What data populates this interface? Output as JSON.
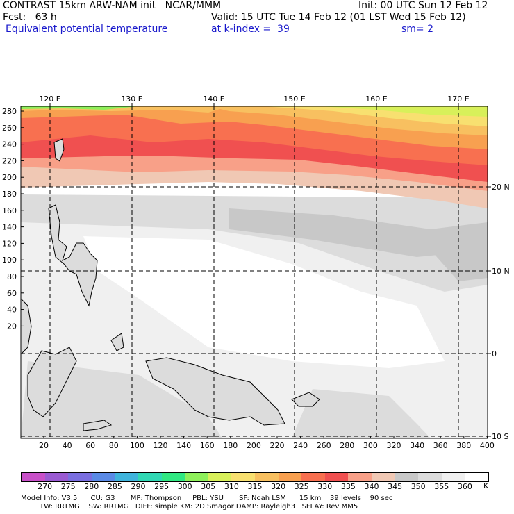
{
  "header": {
    "title": "CONTRAST 15km ARW-NAM init   NCAR/MMM",
    "init": "Init: 00 UTC Sun 12 Feb 12",
    "fcst": "Fcst:   63 h",
    "valid": "Valid: 15 UTC Tue 14 Feb 12 (01 LST Wed 15 Feb 12)",
    "field": "Equivalent potential temperature",
    "level": "at k-index =  39",
    "smooth": "sm= 2"
  },
  "axes": {
    "top_lon": [
      "120 E",
      "130 E",
      "140 E",
      "150 E",
      "160 E",
      "170 E"
    ],
    "right_lat": [
      "20 N",
      "10 N",
      "0",
      "10 S"
    ],
    "left_y": [
      "280",
      "260",
      "240",
      "220",
      "200",
      "180",
      "160",
      "140",
      "120",
      "100",
      "80",
      "60",
      "40",
      "20"
    ],
    "bottom_x": [
      "20",
      "40",
      "60",
      "80",
      "100",
      "120",
      "140",
      "160",
      "180",
      "200",
      "220",
      "240",
      "260",
      "280",
      "300",
      "320",
      "340",
      "360",
      "380",
      "400"
    ]
  },
  "colorbar": {
    "labels": [
      "270",
      "275",
      "280",
      "285",
      "290",
      "295",
      "300",
      "305",
      "310",
      "315",
      "320",
      "325",
      "330",
      "335",
      "340",
      "345",
      "350",
      "355",
      "360"
    ],
    "unit": "K",
    "colors": [
      "#c850c8",
      "#9a5ad2",
      "#7a6ee0",
      "#5a8ae6",
      "#3fb4dc",
      "#30d8b4",
      "#30e882",
      "#8ef05a",
      "#d8f05a",
      "#f8e070",
      "#f8c060",
      "#f8a050",
      "#f87050",
      "#f05050",
      "#f8a088",
      "#f0c8b4",
      "#c8c8c8",
      "#dcdcdc",
      "#f0f0f0",
      "#ffffff"
    ]
  },
  "model_info": {
    "line1": "Model Info: V3.5      CU: G3       MP: Thompson     PBL: YSU       SF: Noah LSM      15 km    39 levels    90 sec",
    "line2": "         LW: RRTMG    SW: RRTMG   DIFF: simple KM: 2D Smagor DAMP: Rayleigh3   SFLAY: Rev MM5"
  }
}
